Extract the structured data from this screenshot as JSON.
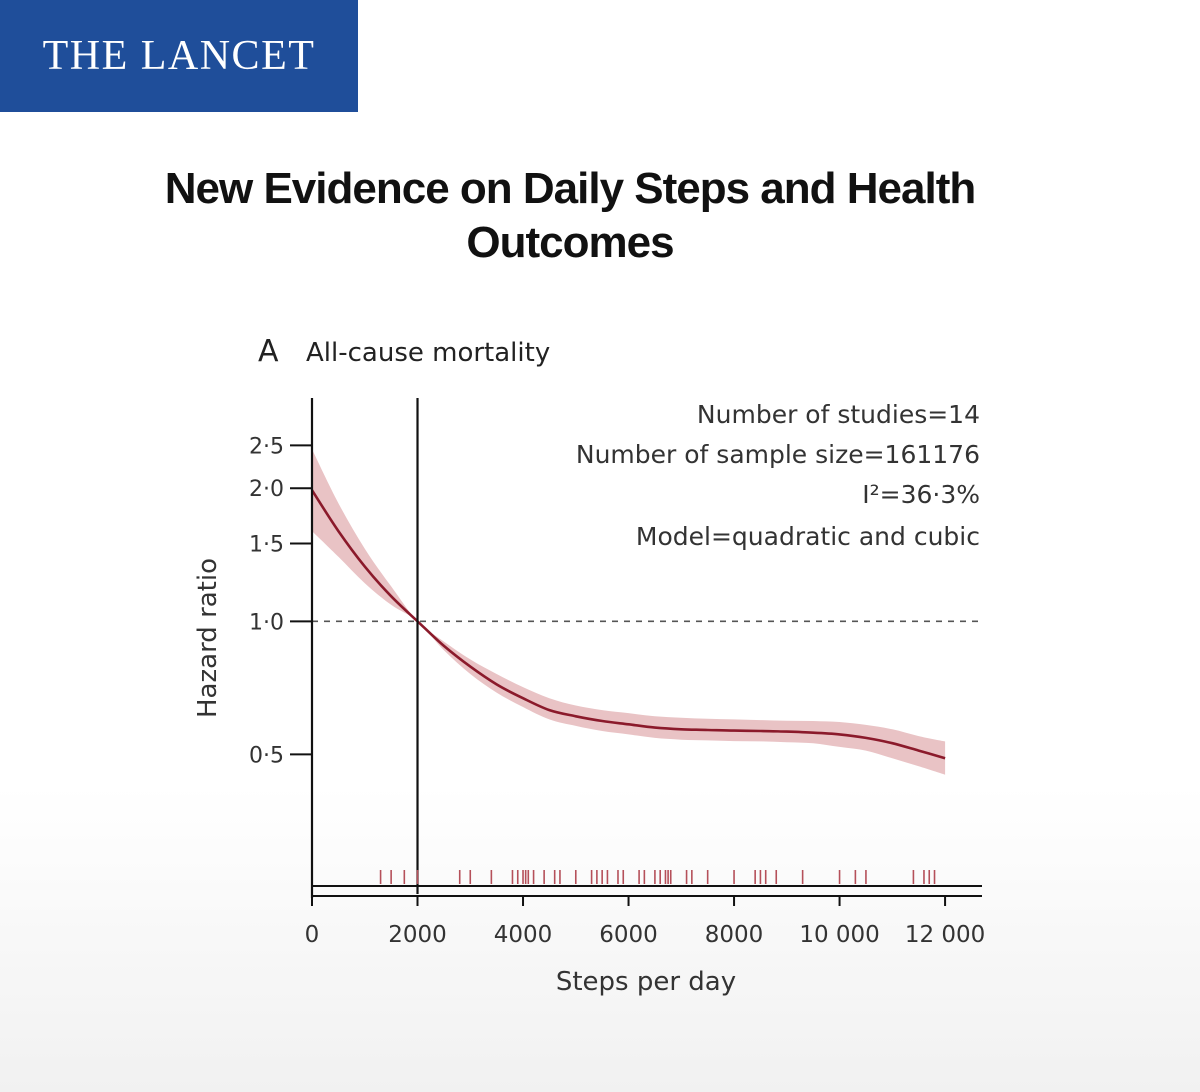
{
  "brand": {
    "name": "THE LANCET",
    "color": "#1f4e9a"
  },
  "headline": "New Evidence on Daily Steps and Health Outcomes",
  "chart_data": {
    "type": "line",
    "panel_letter": "A",
    "title": "All-cause mortality",
    "xlabel": "Steps per day",
    "ylabel": "Hazard ratio",
    "xlim": [
      0,
      12700
    ],
    "y_scale": "log",
    "ylim": [
      0.26,
      3.2
    ],
    "x_ticks": [
      0,
      2000,
      4000,
      6000,
      8000,
      10000,
      12000
    ],
    "x_tick_labels": [
      "0",
      "2000",
      "4000",
      "6000",
      "8000",
      "10 000",
      "12 000"
    ],
    "y_ticks": [
      0.5,
      1.0,
      1.5,
      2.0,
      2.5
    ],
    "y_tick_labels": [
      "0·5",
      "1·0",
      "1·5",
      "2·0",
      "2·5"
    ],
    "reference_line": {
      "y": 1.0,
      "style": "dashed"
    },
    "vertical_line": {
      "x": 2000
    },
    "line_color": "#8b1a2b",
    "band_color": "#e9c3c5",
    "rug_color": "#b5505a",
    "series": [
      {
        "name": "Hazard ratio",
        "x": [
          0,
          500,
          1000,
          1500,
          2000,
          2500,
          3000,
          3500,
          4000,
          4500,
          5000,
          5500,
          6000,
          6500,
          7000,
          7500,
          8000,
          8500,
          9000,
          9500,
          10000,
          10500,
          11000,
          11500,
          12000
        ],
        "values": [
          1.98,
          1.6,
          1.33,
          1.14,
          1.0,
          0.88,
          0.79,
          0.72,
          0.67,
          0.63,
          0.61,
          0.595,
          0.585,
          0.575,
          0.57,
          0.568,
          0.566,
          0.565,
          0.563,
          0.56,
          0.555,
          0.545,
          0.53,
          0.51,
          0.49
        ],
        "lower": [
          1.6,
          1.4,
          1.22,
          1.09,
          1.0,
          0.86,
          0.76,
          0.69,
          0.64,
          0.6,
          0.58,
          0.565,
          0.555,
          0.545,
          0.54,
          0.538,
          0.536,
          0.535,
          0.533,
          0.53,
          0.52,
          0.51,
          0.49,
          0.47,
          0.45
        ],
        "upper": [
          2.45,
          1.85,
          1.46,
          1.2,
          1.0,
          0.9,
          0.82,
          0.76,
          0.71,
          0.67,
          0.645,
          0.63,
          0.62,
          0.61,
          0.605,
          0.602,
          0.6,
          0.598,
          0.596,
          0.595,
          0.592,
          0.583,
          0.57,
          0.55,
          0.535
        ]
      }
    ],
    "rug_steps": [
      1300,
      1500,
      1750,
      2000,
      2800,
      3000,
      3400,
      3800,
      3900,
      4000,
      4050,
      4100,
      4200,
      4400,
      4600,
      4700,
      5000,
      5300,
      5400,
      5500,
      5600,
      5800,
      5900,
      6200,
      6300,
      6500,
      6600,
      6700,
      6750,
      6800,
      7100,
      7200,
      7500,
      8000,
      8400,
      8500,
      8600,
      8800,
      9300,
      10000,
      10300,
      10500,
      11400,
      11600,
      11700,
      11800
    ],
    "annotations": [
      "Number of studies=14",
      "Number of sample size=161176",
      "I²=36·3%",
      "Model=quadratic and cubic"
    ]
  }
}
